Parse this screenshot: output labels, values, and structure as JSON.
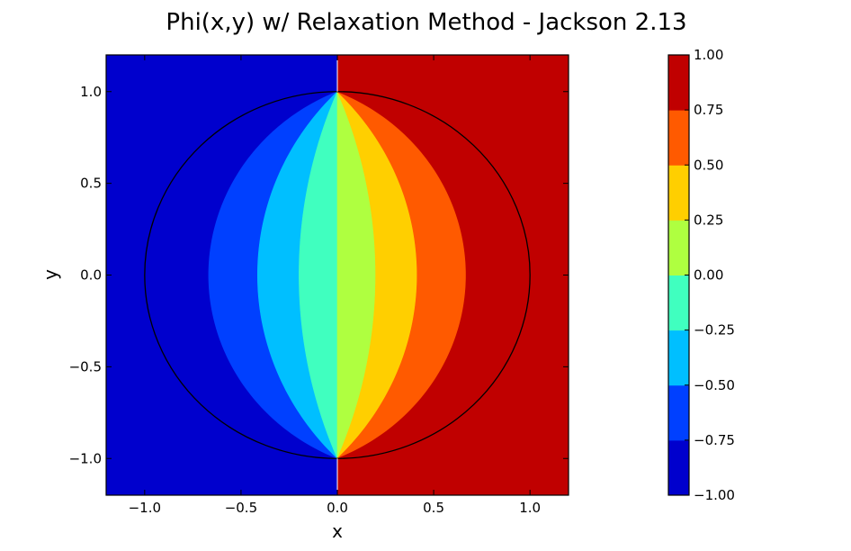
{
  "chart_data": {
    "type": "contourf",
    "title": "Phi(x,y) w/ Relaxation Method - Jackson 2.13",
    "xlabel": "x",
    "ylabel": "y",
    "xlim": [
      -1.2,
      1.2
    ],
    "ylim": [
      -1.2,
      1.2
    ],
    "x_ticks": [
      -1.0,
      -0.5,
      0.0,
      0.5,
      1.0
    ],
    "x_tick_labels": [
      "−1.0",
      "−0.5",
      "0.0",
      "0.5",
      "1.0"
    ],
    "y_ticks": [
      -1.0,
      -0.5,
      0.0,
      0.5,
      1.0
    ],
    "y_tick_labels": [
      "−1.0",
      "−0.5",
      "0.0",
      "0.5",
      "1.0"
    ],
    "colormap": "jet",
    "levels": [
      -1.0,
      -0.75,
      -0.5,
      -0.25,
      0.0,
      0.25,
      0.5,
      0.75,
      1.0
    ],
    "level_colors": [
      "#0000cd",
      "#0040ff",
      "#00bfff",
      "#40ff bf",
      "#afff 40",
      "#ffcf00",
      "#ff5a00",
      "#c00000"
    ],
    "colorbar_tick_labels": [
      "1.00",
      "0.75",
      "0.50",
      "0.25",
      "0.00",
      "−0.25",
      "−0.50",
      "−0.75",
      "−1.00"
    ],
    "boundary": {
      "shape": "circle",
      "center": [
        0,
        0
      ],
      "radius": 1.0
    },
    "field": "phi = (2/pi) * atan(2*r*cos(theta) / (1 - r^2)) inside unit circle; +1 for x>0, -1 for x<0 outside",
    "grid": false
  }
}
